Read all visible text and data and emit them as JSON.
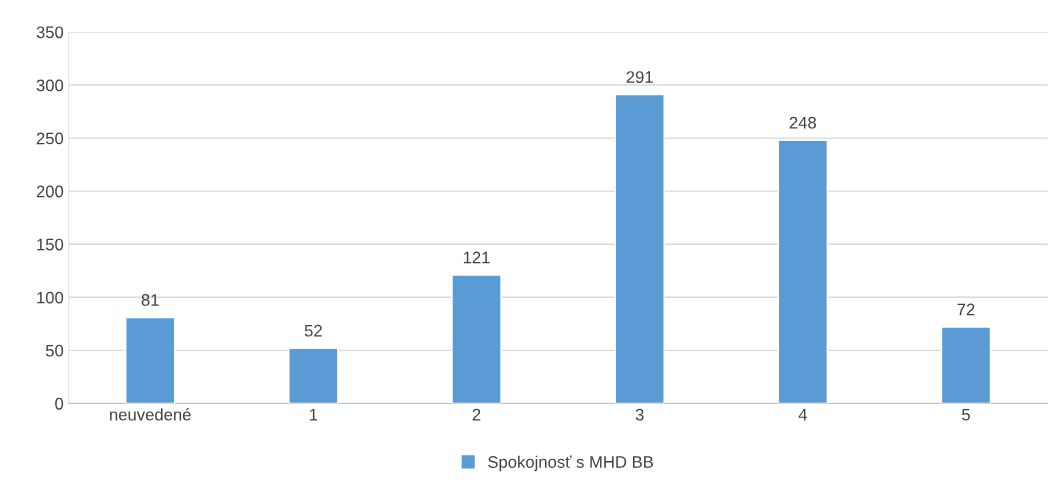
{
  "chart_data": {
    "type": "bar",
    "categories": [
      "neuvedené",
      "1",
      "2",
      "3",
      "4",
      "5"
    ],
    "series": [
      {
        "name": "Spokojnosť s MHD BB",
        "color": "#5b9bd5",
        "values": [
          81,
          52,
          121,
          291,
          248,
          72
        ]
      }
    ],
    "ylim": [
      0,
      350
    ],
    "yticks": [
      0,
      50,
      100,
      150,
      200,
      250,
      300,
      350
    ],
    "grid": "y",
    "legend": "bottom",
    "data_labels": true
  }
}
